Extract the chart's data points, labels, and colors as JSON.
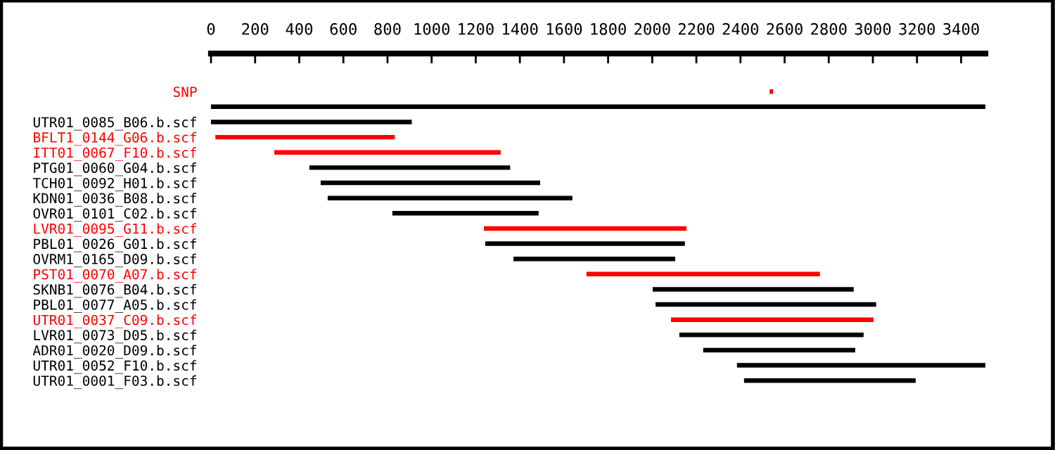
{
  "chart_data": {
    "type": "bar",
    "orientation": "horizontal",
    "categories": [
      "SNP",
      null,
      "UTR01_0085_B06.b.scf",
      "BFLT1_0144_G06.b.scf",
      "ITT01_0067_F10.b.scf",
      "PTG01_0060_G04.b.scf",
      "TCH01_0092_H01.b.scf",
      "KDN01_0036_B08.b.scf",
      "OVR01_0101_C02.b.scf",
      "LVR01_0095_G11.b.scf",
      "PBL01_0026_G01.b.scf",
      "OVRM1_0165_D09.b.scf",
      "PST01_0070_A07.b.scf",
      "SKNB1_0076_B04.b.scf",
      "PBL01_0077_A05.b.scf",
      "UTR01_0037_C09.b.scf",
      "LVR01_0073_D05.b.scf",
      "ADR01_0020_D09.b.scf",
      "UTR01_0052_F10.b.scf",
      "UTR01_0001_F03.b.scf"
    ],
    "base": [
      2532,
      0,
      0,
      20,
      287,
      446,
      497,
      529,
      822,
      1237,
      1243,
      1371,
      1702,
      2002,
      2015,
      2085,
      2123,
      2231,
      2384,
      2416
    ],
    "values": [
      16,
      3510,
      910,
      813,
      1026,
      910,
      995,
      1109,
      663,
      918,
      905,
      733,
      1058,
      911,
      1000,
      918,
      835,
      689,
      1127,
      778
    ],
    "colors": [
      "#ff0000",
      "#000000",
      "#000000",
      "#ff0000",
      "#ff0000",
      "#000000",
      "#000000",
      "#000000",
      "#000000",
      "#ff0000",
      "#000000",
      "#000000",
      "#ff0000",
      "#000000",
      "#000000",
      "#ff0000",
      "#000000",
      "#000000",
      "#000000",
      "#000000"
    ],
    "xlim": [
      0,
      3510
    ],
    "xticks": [
      0,
      200,
      400,
      600,
      800,
      1000,
      1200,
      1400,
      1600,
      1800,
      2000,
      2200,
      2400,
      2600,
      2800,
      3000,
      3200,
      3400
    ],
    "grid": false,
    "legend": false
  }
}
